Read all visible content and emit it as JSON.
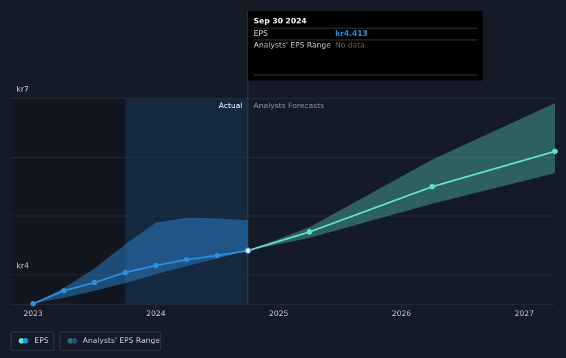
{
  "chart_data": {
    "type": "line",
    "x": [
      2023.0,
      2023.25,
      2023.5,
      2023.75,
      2024.0,
      2024.25,
      2024.5,
      2024.75,
      2025.25,
      2026.25,
      2027.25
    ],
    "xlim": [
      2022.82,
      2027.25
    ],
    "xticks": [
      2023,
      2024,
      2025,
      2026,
      2027
    ],
    "ylim": [
      3.5,
      7
    ],
    "yticks": [
      {
        "value": 4,
        "label": "kr4"
      },
      {
        "value": 7,
        "label": "kr7"
      }
    ],
    "ygrid": [
      4,
      5,
      6,
      7
    ],
    "divider_x": 2024.75,
    "shaded_range": [
      2023.75,
      2024.75
    ],
    "annotations": {
      "actual": "Actual",
      "forecast": "Analysts Forecasts"
    },
    "series": [
      {
        "name": "EPS",
        "color": "#2d8fe0",
        "forecast_color": "#5fe3cf",
        "values": [
          3.51,
          3.73,
          3.87,
          4.04,
          4.16,
          4.26,
          4.33,
          4.413,
          4.73,
          5.5,
          6.1
        ]
      },
      {
        "name": "Analysts' EPS Range",
        "color": "#5fe3cf",
        "x": [
          2024.75,
          2025.25,
          2026.25,
          2027.25
        ],
        "low": [
          4.413,
          4.63,
          5.21,
          5.73
        ],
        "high": [
          4.413,
          4.81,
          5.96,
          6.92
        ]
      }
    ],
    "past_range": {
      "color": "#2d8fe0",
      "x": [
        2023.0,
        2023.25,
        2023.5,
        2023.75,
        2024.0,
        2024.25,
        2024.5,
        2024.75
      ],
      "low": [
        3.51,
        3.61,
        3.73,
        3.86,
        4.01,
        4.15,
        4.28,
        4.413
      ],
      "high": [
        3.51,
        3.78,
        4.11,
        4.52,
        4.89,
        4.97,
        4.96,
        4.93
      ]
    },
    "tooltip": {
      "date": "Sep 30 2024",
      "rows": [
        {
          "label": "EPS",
          "value": "kr4.413"
        },
        {
          "label": "Analysts' EPS Range",
          "value": "No data"
        }
      ]
    }
  }
}
